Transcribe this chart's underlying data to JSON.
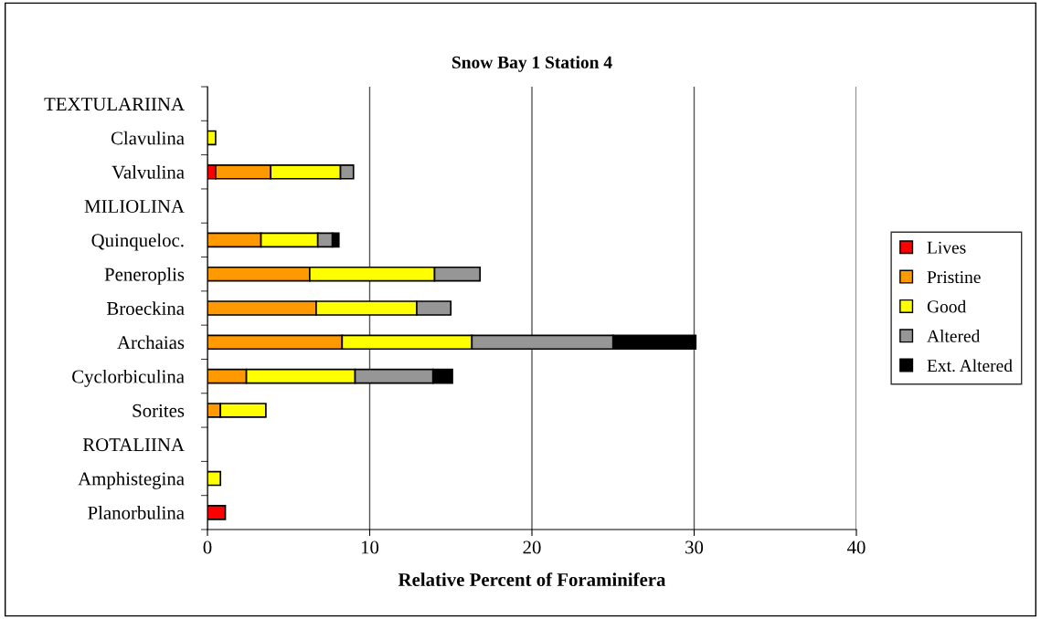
{
  "chart_data": {
    "type": "bar",
    "orientation": "horizontal",
    "stacked": true,
    "title": "Snow Bay 1 Station 4",
    "xlabel": "Relative Percent of Foraminifera",
    "categories": [
      "TEXTULARIINA",
      "Clavulina",
      "Valvulina",
      "MILIOLINA",
      "Quinqueloc.",
      "Peneroplis",
      "Broeckina",
      "Archaias",
      "Cyclorbiculina",
      "Sorites",
      "ROTALIINA",
      "Amphistegina",
      "Planorbulina"
    ],
    "series": [
      {
        "name": "Lives",
        "color": "#ff0000",
        "values": [
          null,
          null,
          0.5,
          null,
          null,
          null,
          null,
          null,
          null,
          null,
          null,
          null,
          1.1
        ]
      },
      {
        "name": "Pristine",
        "color": "#ff9900",
        "values": [
          null,
          null,
          3.4,
          null,
          3.3,
          6.3,
          6.7,
          8.3,
          2.4,
          0.8,
          null,
          null,
          null
        ]
      },
      {
        "name": "Good",
        "color": "#ffff00",
        "values": [
          null,
          0.5,
          4.3,
          null,
          3.5,
          7.7,
          6.2,
          8.0,
          6.7,
          2.8,
          null,
          0.8,
          null
        ]
      },
      {
        "name": "Altered",
        "color": "#969696",
        "values": [
          null,
          null,
          0.8,
          null,
          0.9,
          2.8,
          2.1,
          8.7,
          4.8,
          null,
          null,
          null,
          null
        ]
      },
      {
        "name": "Ext. Altered",
        "color": "#000000",
        "values": [
          null,
          null,
          null,
          null,
          0.4,
          null,
          null,
          5.1,
          1.2,
          null,
          null,
          null,
          null
        ]
      }
    ],
    "xlim": [
      0,
      40
    ],
    "xticks": [
      0,
      10,
      20,
      30,
      40
    ],
    "grid": "x",
    "legend": "right"
  }
}
